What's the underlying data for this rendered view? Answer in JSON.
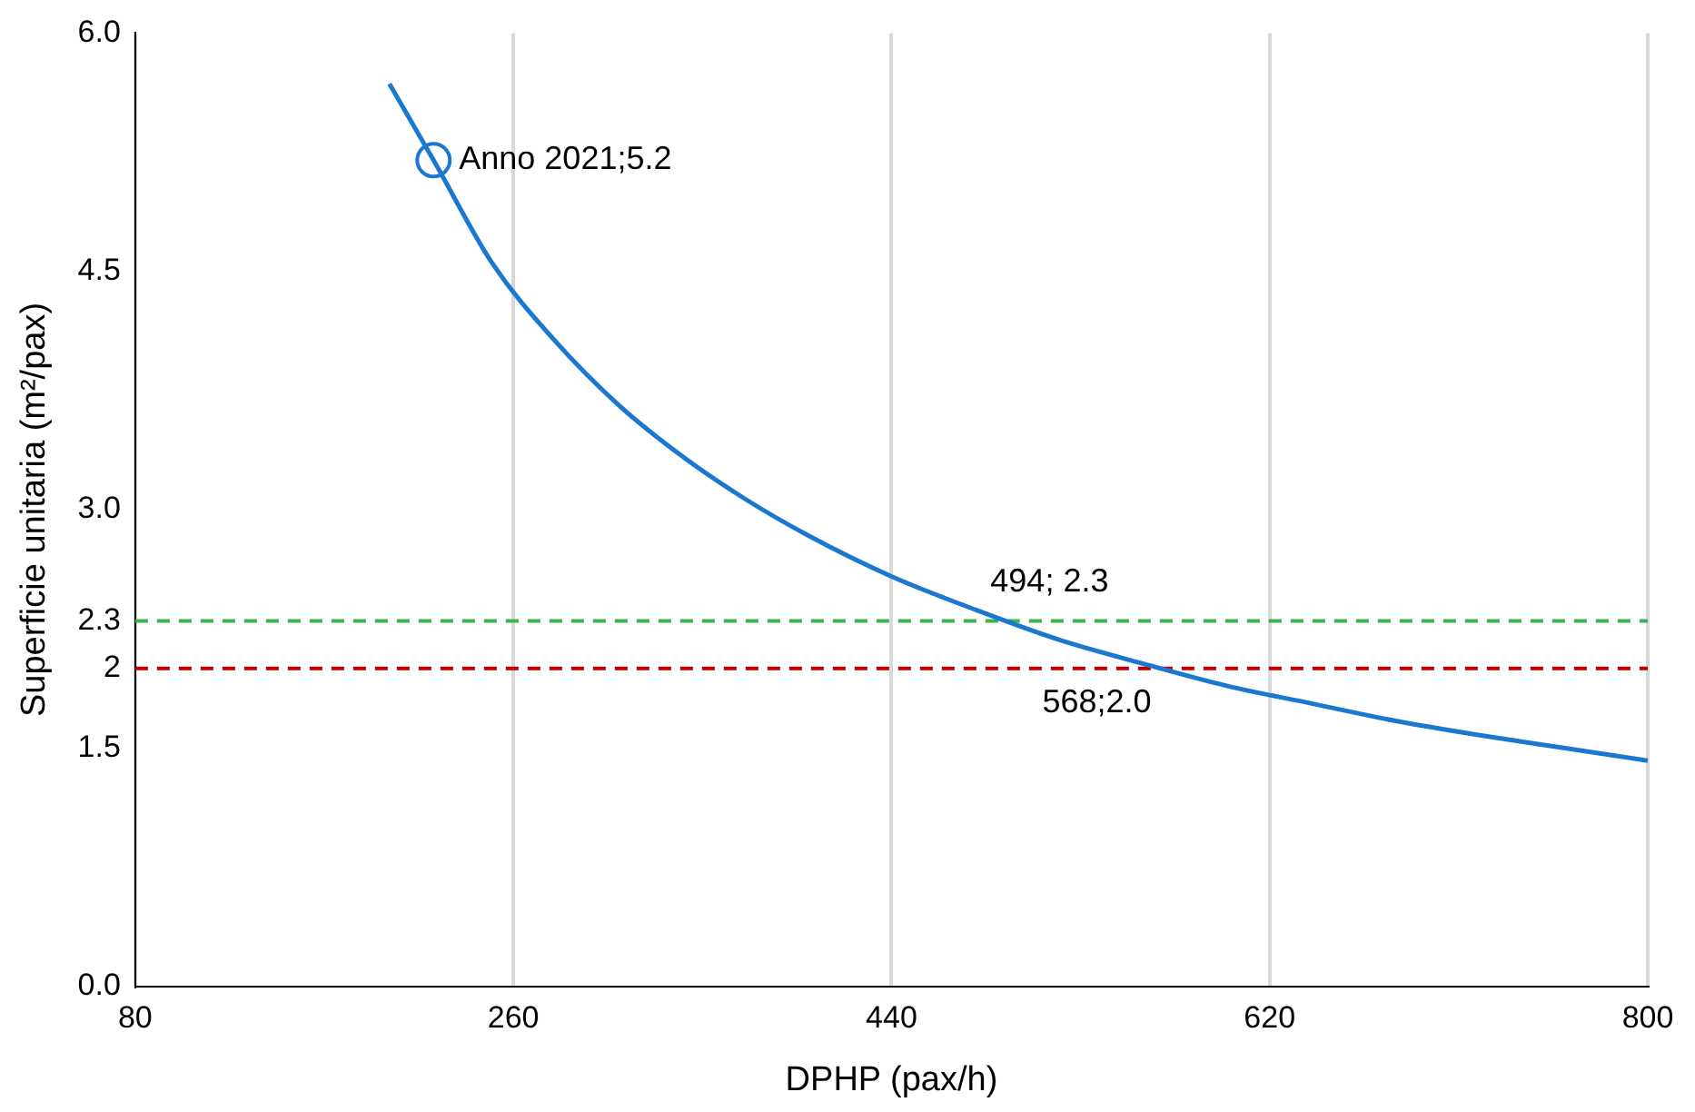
{
  "chart_data": {
    "type": "line",
    "xlabel": "DPHP (pax/h)",
    "ylabel": "Superficie unitaria (m²/pax)",
    "xlim": [
      80,
      800
    ],
    "xticks": [
      80,
      260,
      440,
      620,
      800
    ],
    "ylim": [
      0,
      6
    ],
    "yticks": [
      {
        "value": 0,
        "label": "0.0"
      },
      {
        "value": 1.5,
        "label": "1.5"
      },
      {
        "value": 2,
        "label": "2"
      },
      {
        "value": 2.3,
        "label": "2.3"
      },
      {
        "value": 3,
        "label": "3.0"
      },
      {
        "value": 4.5,
        "label": "4.5"
      },
      {
        "value": 6,
        "label": "6.0"
      }
    ],
    "grid": "x",
    "legend": false,
    "series": [
      {
        "color": "#1a78d0",
        "marker": "none",
        "x": [
          201,
          222,
          250,
          280,
          310,
          340,
          370,
          400,
          440,
          480,
          520,
          560,
          600,
          640,
          680,
          720,
          760,
          800
        ],
        "values": [
          5.68,
          5.2,
          4.55,
          4.06,
          3.66,
          3.34,
          3.07,
          2.84,
          2.58,
          2.37,
          2.18,
          2.03,
          1.89,
          1.78,
          1.67,
          1.58,
          1.5,
          1.42
        ]
      },
      {
        "type": "scatter",
        "color": "#1a78d0",
        "marker": "circle",
        "x": [
          222
        ],
        "values": [
          5.2
        ]
      }
    ],
    "ref_lines": [
      {
        "axis": "y",
        "value": 2.3,
        "color": "#3cb44b",
        "line_style": "dashed"
      },
      {
        "axis": "y",
        "value": 2,
        "color": "#c00000",
        "line_style": "dashed"
      }
    ],
    "annotations": [
      {
        "text": "Anno 2021;5.2",
        "x": 222,
        "y": 5.2
      },
      {
        "text": "494; 2.3",
        "x": 494,
        "y": 2.3
      },
      {
        "text": "568;2.0",
        "x": 568,
        "y": 2.0
      }
    ]
  }
}
